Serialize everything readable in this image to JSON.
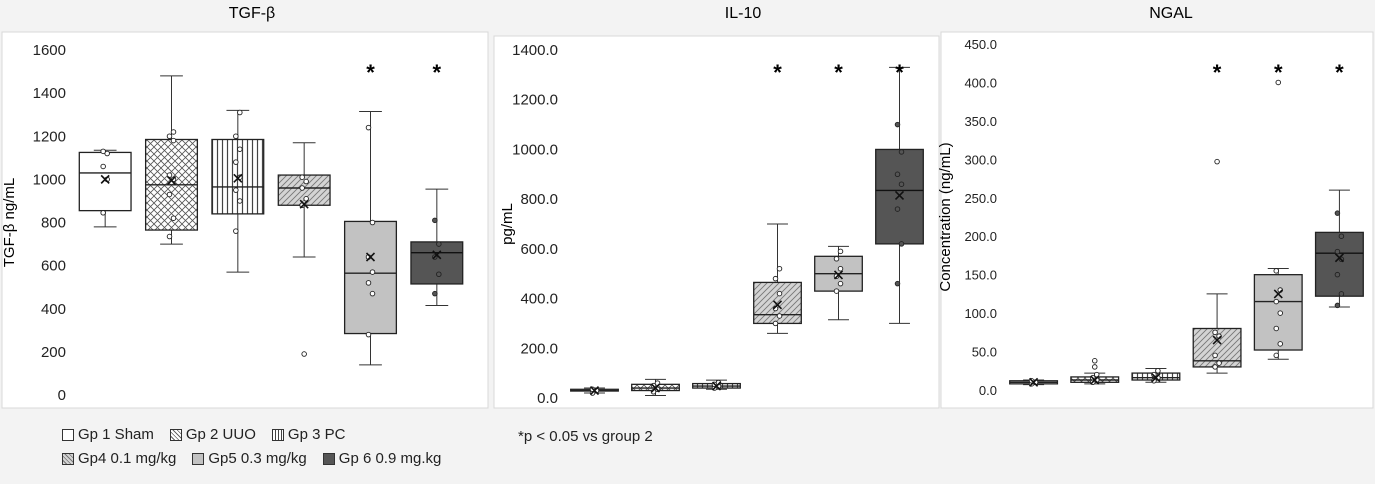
{
  "charts": [
    {
      "type": "box",
      "title": "TGF-β",
      "ylabel": "TGF-β ng/mL",
      "ylim": [
        0,
        1600
      ],
      "yticks": [
        0,
        200,
        400,
        600,
        800,
        1000,
        1200,
        1400,
        1600
      ],
      "tick_decimals": 0,
      "groups": [
        {
          "group": "Gp 1 Sham",
          "whisker_low": 780,
          "q1": 855,
          "median": 1030,
          "q3": 1125,
          "whisker_high": 1135,
          "mean": 1000,
          "points": [
            845,
            1000,
            1060,
            1120,
            1130
          ],
          "outliers": [],
          "star": false
        },
        {
          "group": "Gp 2 UUO",
          "whisker_low": 700,
          "q1": 765,
          "median": 975,
          "q3": 1185,
          "whisker_high": 1480,
          "mean": 995,
          "points": [
            735,
            820,
            930,
            1000,
            1020,
            1180,
            1200,
            1220
          ],
          "outliers": [],
          "star": false
        },
        {
          "group": "Gp 3 PC",
          "whisker_low": 570,
          "q1": 840,
          "median": 965,
          "q3": 1185,
          "whisker_high": 1320,
          "mean": 1005,
          "points": [
            760,
            900,
            950,
            1010,
            1080,
            1140,
            1200,
            1310
          ],
          "outliers": [],
          "star": false
        },
        {
          "group": "Gp 4 0.1 mg/kg",
          "whisker_low": 640,
          "q1": 880,
          "median": 960,
          "q3": 1020,
          "whisker_high": 1170,
          "mean": 885,
          "points": [
            880,
            910,
            960,
            990,
            1010
          ],
          "outliers": [
            190
          ],
          "star": false
        },
        {
          "group": "Gp 5 0.3 mg/kg",
          "whisker_low": 140,
          "q1": 285,
          "median": 565,
          "q3": 805,
          "whisker_high": 1315,
          "mean": 640,
          "points": [
            280,
            470,
            520,
            570,
            640,
            800,
            1240
          ],
          "outliers": [],
          "star": true
        },
        {
          "group": "Gp 6 0.9 mg.kg",
          "whisker_low": 415,
          "q1": 515,
          "median": 660,
          "q3": 710,
          "whisker_high": 955,
          "mean": 650,
          "points": [
            470,
            560,
            640,
            700,
            810
          ],
          "outliers": [],
          "star": true
        }
      ]
    },
    {
      "type": "box",
      "title": "IL-10",
      "ylabel": "pg/mL",
      "ylim": [
        0,
        1400
      ],
      "yticks": [
        0,
        200,
        400,
        600,
        800,
        1000,
        1200,
        1400
      ],
      "tick_decimals": 1,
      "groups": [
        {
          "group": "Gp 1 Sham",
          "whisker_low": 20,
          "q1": 28,
          "median": 30,
          "q3": 35,
          "whisker_high": 40,
          "mean": 30,
          "points": [
            20,
            30,
            35
          ],
          "outliers": [],
          "star": false
        },
        {
          "group": "Gp 2 UUO",
          "whisker_low": 10,
          "q1": 30,
          "median": 40,
          "q3": 55,
          "whisker_high": 75,
          "mean": 40,
          "points": [
            25,
            35,
            50,
            60
          ],
          "outliers": [],
          "star": false
        },
        {
          "group": "Gp 3 PC",
          "whisker_low": 35,
          "q1": 40,
          "median": 48,
          "q3": 58,
          "whisker_high": 72,
          "mean": 48,
          "points": [
            40,
            48,
            55,
            62
          ],
          "outliers": [],
          "star": false
        },
        {
          "group": "Gp 4 0.1 mg/kg",
          "whisker_low": 260,
          "q1": 300,
          "median": 335,
          "q3": 465,
          "whisker_high": 700,
          "mean": 375,
          "points": [
            300,
            330,
            360,
            420,
            480,
            520
          ],
          "outliers": [],
          "star": true
        },
        {
          "group": "Gp 5 0.3 mg/kg",
          "whisker_low": 315,
          "q1": 430,
          "median": 500,
          "q3": 570,
          "whisker_high": 610,
          "mean": 495,
          "points": [
            430,
            460,
            490,
            520,
            560,
            590
          ],
          "outliers": [],
          "star": true
        },
        {
          "group": "Gp 6 0.9 mg.kg",
          "whisker_low": 300,
          "q1": 620,
          "median": 835,
          "q3": 1000,
          "whisker_high": 1330,
          "mean": 815,
          "points": [
            460,
            620,
            760,
            860,
            900,
            990,
            1100
          ],
          "outliers": [],
          "star": true
        }
      ]
    },
    {
      "type": "box",
      "title": "NGAL",
      "ylabel": "Concentration (ng/mL)",
      "ylim": [
        0,
        450
      ],
      "yticks": [
        0,
        50,
        100,
        150,
        200,
        250,
        300,
        350,
        400,
        450
      ],
      "tick_decimals": 1,
      "groups": [
        {
          "group": "Gp 1 Sham",
          "whisker_low": 7,
          "q1": 8,
          "median": 10,
          "q3": 12,
          "whisker_high": 13,
          "mean": 10,
          "points": [
            8,
            10,
            12
          ],
          "outliers": [],
          "star": false
        },
        {
          "group": "Gp 2 UUO",
          "whisker_low": 8,
          "q1": 10,
          "median": 13,
          "q3": 17,
          "whisker_high": 22,
          "mean": 13,
          "points": [
            10,
            13,
            16,
            20
          ],
          "outliers": [
            38,
            30
          ],
          "star": false
        },
        {
          "group": "Gp 3 PC",
          "whisker_low": 10,
          "q1": 13,
          "median": 16,
          "q3": 22,
          "whisker_high": 28,
          "mean": 16,
          "points": [
            12,
            16,
            20,
            25
          ],
          "outliers": [],
          "star": false
        },
        {
          "group": "Gp 4 0.1 mg/kg",
          "whisker_low": 22,
          "q1": 30,
          "median": 38,
          "q3": 80,
          "whisker_high": 125,
          "mean": 65,
          "points": [
            30,
            35,
            45,
            70,
            75
          ],
          "outliers": [
            297
          ],
          "star": true
        },
        {
          "group": "Gp 5 0.3 mg/kg",
          "whisker_low": 40,
          "q1": 52,
          "median": 115,
          "q3": 150,
          "whisker_high": 158,
          "mean": 125,
          "points": [
            45,
            60,
            80,
            100,
            115,
            130,
            155
          ],
          "outliers": [
            400
          ],
          "star": true
        },
        {
          "group": "Gp 6 0.9 mg.kg",
          "whisker_low": 108,
          "q1": 122,
          "median": 178,
          "q3": 205,
          "whisker_high": 260,
          "mean": 172,
          "points": [
            110,
            125,
            150,
            170,
            180,
            200,
            230
          ],
          "outliers": [],
          "star": true
        }
      ]
    }
  ],
  "star_symbol": "*",
  "legend": [
    {
      "label": "Gp 1 Sham",
      "fill": "#ffffff",
      "pattern": "none"
    },
    {
      "label": "Gp 2 UUO",
      "fill": "#ffffff",
      "pattern": "crosshatch"
    },
    {
      "label": "Gp 3 PC",
      "fill": "#ffffff",
      "pattern": "vertical"
    },
    {
      "label": "Gp4 0.1 mg/kg",
      "fill": "#cfcfcf",
      "pattern": "diagonal"
    },
    {
      "label": "Gp5 0.3 mg/kg",
      "fill": "#c2c2c2",
      "pattern": "none"
    },
    {
      "label": "Gp 6 0.9 mg.kg",
      "fill": "#555555",
      "pattern": "none"
    }
  ],
  "footnote": "*p < 0.05 vs group 2",
  "colors": {
    "panel_bg": "#ffffff",
    "page_bg": "#f3f3f3",
    "box_stroke": "#222222",
    "dark_box": "#555555"
  }
}
